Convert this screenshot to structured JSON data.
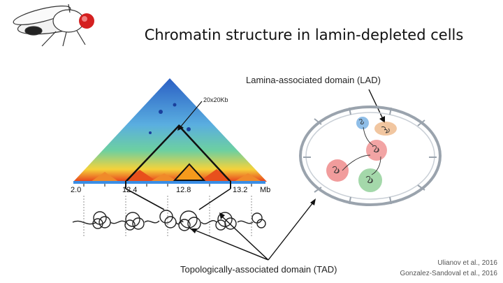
{
  "title": "Chromatin structure in lamin-depleted cells",
  "labels": {
    "lad": "Lamina-associated domain (LAD)",
    "tad": "Topologically-associated domain (TAD)",
    "resolution": "20x20Kb"
  },
  "axis": {
    "ticks": [
      "2.0",
      "12.4",
      "12.8",
      "13.2"
    ],
    "unit": "Mb"
  },
  "citations": [
    "Ulianov et al., 2016",
    "Gonzalez-Sandoval et al., 2016"
  ],
  "colors": {
    "heatmap_high": "#e8401c",
    "heatmap_mid": "#f5d23a",
    "heatmap_low": "#3a78d4",
    "tad_highlight": "#f59a1c",
    "axis_bar": "#3a8ee6",
    "nucleus_outline": "#9aa3ad",
    "blob_red": "#e85a5a",
    "blob_green": "#5ab864",
    "blob_blue": "#6aa8e0"
  },
  "icons": [
    "fruit-fly-icon"
  ]
}
